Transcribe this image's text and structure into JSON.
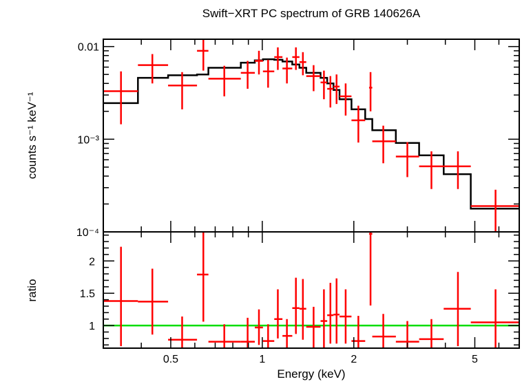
{
  "chart_data": [
    {
      "type": "line",
      "title": "Swift−XRT PC spectrum of GRB 140626A",
      "xlabel": "Energy (keV)",
      "ylabel": "counts s⁻¹ keV⁻¹",
      "x_scale": "log",
      "y_scale": "log",
      "xlim": [
        0.3,
        7.0
      ],
      "ylim": [
        0.0001,
        0.012
      ],
      "grid": false,
      "y_tick_labels": [
        {
          "value": 0.01,
          "label": "0.01"
        },
        {
          "value": 0.001,
          "label": "10⁻³"
        },
        {
          "value": 0.0001,
          "label": "10⁻⁴"
        }
      ],
      "series": [
        {
          "kind": "data-crosses",
          "color": "#ff0000",
          "points": [
            {
              "x": 0.343,
              "xlo": 0.3,
              "xhi": 0.39,
              "y": 0.0033,
              "ylo": 0.00145,
              "yhi": 0.0054
            },
            {
              "x": 0.435,
              "xlo": 0.39,
              "xhi": 0.49,
              "y": 0.0063,
              "ylo": 0.004,
              "yhi": 0.0083
            },
            {
              "x": 0.545,
              "xlo": 0.49,
              "xhi": 0.61,
              "y": 0.0038,
              "ylo": 0.0021,
              "yhi": 0.0053
            },
            {
              "x": 0.64,
              "xlo": 0.61,
              "xhi": 0.665,
              "y": 0.009,
              "ylo": 0.0055,
              "yhi": 0.012
            },
            {
              "x": 0.75,
              "xlo": 0.665,
              "xhi": 0.85,
              "y": 0.0045,
              "ylo": 0.0029,
              "yhi": 0.0062
            },
            {
              "x": 0.895,
              "xlo": 0.85,
              "xhi": 0.945,
              "y": 0.0052,
              "ylo": 0.0035,
              "yhi": 0.007
            },
            {
              "x": 0.975,
              "xlo": 0.945,
              "xhi": 1.005,
              "y": 0.007,
              "ylo": 0.005,
              "yhi": 0.009
            },
            {
              "x": 1.045,
              "xlo": 1.005,
              "xhi": 1.095,
              "y": 0.0054,
              "ylo": 0.0036,
              "yhi": 0.0072
            },
            {
              "x": 1.125,
              "xlo": 1.095,
              "xhi": 1.165,
              "y": 0.0077,
              "ylo": 0.0056,
              "yhi": 0.0098
            },
            {
              "x": 1.205,
              "xlo": 1.165,
              "xhi": 1.255,
              "y": 0.0058,
              "ylo": 0.004,
              "yhi": 0.0076
            },
            {
              "x": 1.29,
              "xlo": 1.255,
              "xhi": 1.325,
              "y": 0.0077,
              "ylo": 0.0056,
              "yhi": 0.0098
            },
            {
              "x": 1.36,
              "xlo": 1.325,
              "xhi": 1.395,
              "y": 0.0068,
              "ylo": 0.0049,
              "yhi": 0.0087
            },
            {
              "x": 1.475,
              "xlo": 1.395,
              "xhi": 1.555,
              "y": 0.0048,
              "ylo": 0.0033,
              "yhi": 0.0063
            },
            {
              "x": 1.595,
              "xlo": 1.555,
              "xhi": 1.635,
              "y": 0.0041,
              "ylo": 0.0027,
              "yhi": 0.0055
            },
            {
              "x": 1.675,
              "xlo": 1.635,
              "xhi": 1.715,
              "y": 0.0035,
              "ylo": 0.0022,
              "yhi": 0.0048
            },
            {
              "x": 1.755,
              "xlo": 1.715,
              "xhi": 1.795,
              "y": 0.0037,
              "ylo": 0.0024,
              "yhi": 0.005
            },
            {
              "x": 1.88,
              "xlo": 1.795,
              "xhi": 1.965,
              "y": 0.0029,
              "ylo": 0.0018,
              "yhi": 0.004
            },
            {
              "x": 2.07,
              "xlo": 1.965,
              "xhi": 2.18,
              "y": 0.0016,
              "ylo": 0.00092,
              "yhi": 0.0023
            },
            {
              "x": 2.27,
              "xlo": 2.245,
              "xhi": 2.3,
              "y": 0.0036,
              "ylo": 0.002,
              "yhi": 0.0053
            },
            {
              "x": 2.5,
              "xlo": 2.3,
              "xhi": 2.75,
              "y": 0.00095,
              "ylo": 0.00055,
              "yhi": 0.0014
            },
            {
              "x": 3.0,
              "xlo": 2.75,
              "xhi": 3.28,
              "y": 0.00065,
              "ylo": 0.00039,
              "yhi": 0.00093
            },
            {
              "x": 3.6,
              "xlo": 3.28,
              "xhi": 3.95,
              "y": 0.00051,
              "ylo": 0.00029,
              "yhi": 0.00074
            },
            {
              "x": 4.4,
              "xlo": 3.95,
              "xhi": 4.85,
              "y": 0.00051,
              "ylo": 0.00029,
              "yhi": 0.00074
            },
            {
              "x": 5.85,
              "xlo": 4.85,
              "xhi": 7.0,
              "y": 0.00019,
              "ylo": 0.0001,
              "yhi": 0.000285
            }
          ]
        },
        {
          "kind": "model-histogram",
          "color": "#000000",
          "steps": [
            {
              "xlo": 0.3,
              "xhi": 0.39,
              "y": 0.00245
            },
            {
              "xlo": 0.39,
              "xhi": 0.49,
              "y": 0.0046
            },
            {
              "xlo": 0.49,
              "xhi": 0.61,
              "y": 0.0049
            },
            {
              "xlo": 0.61,
              "xhi": 0.665,
              "y": 0.005
            },
            {
              "xlo": 0.665,
              "xhi": 0.85,
              "y": 0.0059
            },
            {
              "xlo": 0.85,
              "xhi": 0.945,
              "y": 0.0067
            },
            {
              "xlo": 0.945,
              "xhi": 1.005,
              "y": 0.0071
            },
            {
              "xlo": 1.005,
              "xhi": 1.095,
              "y": 0.0073
            },
            {
              "xlo": 1.095,
              "xhi": 1.165,
              "y": 0.0072
            },
            {
              "xlo": 1.165,
              "xhi": 1.255,
              "y": 0.0069
            },
            {
              "xlo": 1.255,
              "xhi": 1.325,
              "y": 0.0064
            },
            {
              "xlo": 1.325,
              "xhi": 1.395,
              "y": 0.0059
            },
            {
              "xlo": 1.395,
              "xhi": 1.555,
              "y": 0.0052
            },
            {
              "xlo": 1.555,
              "xhi": 1.635,
              "y": 0.0046
            },
            {
              "xlo": 1.635,
              "xhi": 1.715,
              "y": 0.004
            },
            {
              "xlo": 1.715,
              "xhi": 1.795,
              "y": 0.0034
            },
            {
              "xlo": 1.795,
              "xhi": 1.965,
              "y": 0.0027
            },
            {
              "xlo": 1.965,
              "xhi": 2.18,
              "y": 0.0021
            },
            {
              "xlo": 2.18,
              "xhi": 2.3,
              "y": 0.00165
            },
            {
              "xlo": 2.3,
              "xhi": 2.75,
              "y": 0.00125
            },
            {
              "xlo": 2.75,
              "xhi": 3.28,
              "y": 0.00091
            },
            {
              "xlo": 3.28,
              "xhi": 3.95,
              "y": 0.00067
            },
            {
              "xlo": 3.95,
              "xhi": 4.85,
              "y": 0.00042
            },
            {
              "xlo": 4.85,
              "xhi": 7.0,
              "y": 0.000178
            }
          ]
        }
      ]
    },
    {
      "type": "scatter",
      "xlabel": "Energy (keV)",
      "ylabel": "ratio",
      "x_scale": "log",
      "y_scale": "linear",
      "xlim": [
        0.3,
        7.0
      ],
      "ylim": [
        0.65,
        2.45
      ],
      "x_ticks": [
        0.5,
        1,
        2,
        5
      ],
      "x_tick_labels": [
        "0.5",
        "1",
        "2",
        "5"
      ],
      "y_ticks": [
        1,
        1.5,
        2
      ],
      "y_tick_labels": [
        "1",
        "1.5",
        "2"
      ],
      "reference_line": {
        "y": 1,
        "color": "#00dd00"
      },
      "series": [
        {
          "kind": "data-crosses",
          "color": "#ff0000",
          "points": [
            {
              "x": 0.343,
              "xlo": 0.3,
              "xhi": 0.39,
              "y": 1.38,
              "ylo": 0.68,
              "yhi": 2.22
            },
            {
              "x": 0.435,
              "xlo": 0.39,
              "xhi": 0.49,
              "y": 1.37,
              "ylo": 0.86,
              "yhi": 1.88
            },
            {
              "x": 0.545,
              "xlo": 0.49,
              "xhi": 0.61,
              "y": 0.78,
              "ylo": 0.55,
              "yhi": 1.14
            },
            {
              "x": 0.64,
              "xlo": 0.61,
              "xhi": 0.665,
              "y": 1.79,
              "ylo": 1.06,
              "yhi": 2.45
            },
            {
              "x": 0.75,
              "xlo": 0.665,
              "xhi": 0.85,
              "y": 0.75,
              "ylo": 0.55,
              "yhi": 1.02
            },
            {
              "x": 0.895,
              "xlo": 0.85,
              "xhi": 0.945,
              "y": 0.75,
              "ylo": 0.55,
              "yhi": 1.12
            },
            {
              "x": 0.975,
              "xlo": 0.945,
              "xhi": 1.005,
              "y": 0.97,
              "ylo": 0.7,
              "yhi": 1.25
            },
            {
              "x": 1.045,
              "xlo": 1.005,
              "xhi": 1.095,
              "y": 0.76,
              "ylo": 0.55,
              "yhi": 1.02
            },
            {
              "x": 1.125,
              "xlo": 1.095,
              "xhi": 1.165,
              "y": 1.1,
              "ylo": 0.8,
              "yhi": 1.56
            },
            {
              "x": 1.205,
              "xlo": 1.165,
              "xhi": 1.255,
              "y": 0.84,
              "ylo": 0.58,
              "yhi": 1.1
            },
            {
              "x": 1.29,
              "xlo": 1.255,
              "xhi": 1.325,
              "y": 1.27,
              "ylo": 0.87,
              "yhi": 1.74
            },
            {
              "x": 1.36,
              "xlo": 1.325,
              "xhi": 1.395,
              "y": 1.26,
              "ylo": 0.78,
              "yhi": 1.72
            },
            {
              "x": 1.475,
              "xlo": 1.395,
              "xhi": 1.555,
              "y": 0.98,
              "ylo": 0.65,
              "yhi": 1.29
            },
            {
              "x": 1.595,
              "xlo": 1.555,
              "xhi": 1.635,
              "y": 1.07,
              "ylo": 0.65,
              "yhi": 1.56
            },
            {
              "x": 1.675,
              "xlo": 1.635,
              "xhi": 1.715,
              "y": 1.16,
              "ylo": 0.72,
              "yhi": 1.66
            },
            {
              "x": 1.755,
              "xlo": 1.715,
              "xhi": 1.795,
              "y": 1.17,
              "ylo": 0.72,
              "yhi": 1.73
            },
            {
              "x": 1.88,
              "xlo": 1.795,
              "xhi": 1.965,
              "y": 1.14,
              "ylo": 0.72,
              "yhi": 1.56
            },
            {
              "x": 2.07,
              "xlo": 1.965,
              "xhi": 2.18,
              "y": 0.76,
              "ylo": 0.55,
              "yhi": 1.15
            },
            {
              "x": 2.27,
              "xlo": 2.245,
              "xhi": 2.3,
              "y": 2.42,
              "ylo": 1.31,
              "yhi": 2.47
            },
            {
              "x": 2.5,
              "xlo": 2.3,
              "xhi": 2.75,
              "y": 0.83,
              "ylo": 0.55,
              "yhi": 1.18
            },
            {
              "x": 3.0,
              "xlo": 2.75,
              "xhi": 3.28,
              "y": 0.75,
              "ylo": 0.55,
              "yhi": 1.07
            },
            {
              "x": 3.6,
              "xlo": 3.28,
              "xhi": 3.95,
              "y": 0.79,
              "ylo": 0.55,
              "yhi": 1.1
            },
            {
              "x": 4.4,
              "xlo": 3.95,
              "xhi": 4.85,
              "y": 1.26,
              "ylo": 0.68,
              "yhi": 1.83
            },
            {
              "x": 5.85,
              "xlo": 4.85,
              "xhi": 7.0,
              "y": 1.05,
              "ylo": 0.55,
              "yhi": 1.56
            }
          ]
        }
      ]
    }
  ]
}
